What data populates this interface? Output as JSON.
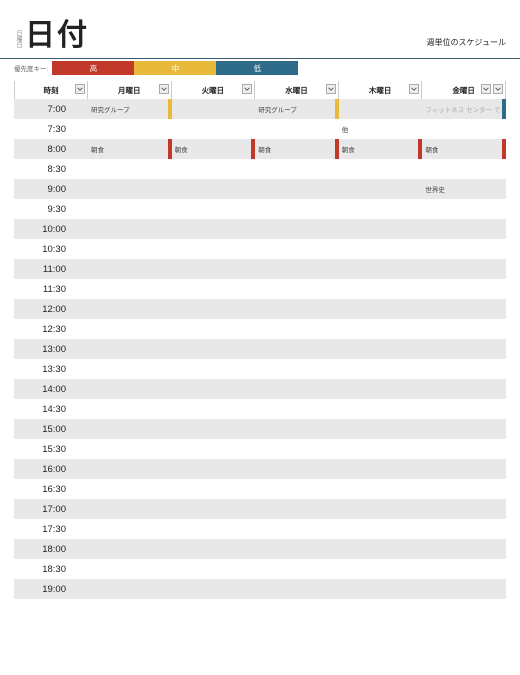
{
  "header": {
    "vertical_label": "日曜日",
    "title": "日付",
    "subtitle": "週単位のスケジュール"
  },
  "priority": {
    "label": "優先度キー:",
    "levels": [
      {
        "label": "高",
        "color": "#c0392b"
      },
      {
        "label": "中",
        "color": "#e9b93c"
      },
      {
        "label": "低",
        "color": "#2d6b88"
      }
    ]
  },
  "columns": {
    "time": "時刻",
    "days": [
      "月曜日",
      "火曜日",
      "水曜日",
      "木曜日",
      "金曜日"
    ]
  },
  "colors": {
    "high": "#c0392b",
    "mid": "#e9b93c",
    "low": "#2d6b88",
    "header_border": "#3a5b6c",
    "alt_row": "#e8e8e8"
  },
  "time_slots": [
    "7:00",
    "7:30",
    "8:00",
    "8:30",
    "9:00",
    "9:30",
    "10:00",
    "10:30",
    "11:00",
    "11:30",
    "12:00",
    "12:30",
    "13:00",
    "13:30",
    "14:00",
    "14:30",
    "15:00",
    "15:30",
    "16:00",
    "16:30",
    "17:00",
    "17:30",
    "18:00",
    "18:30",
    "19:00"
  ],
  "events": {
    "7:00": [
      {
        "text": "研究グループ",
        "tag": "#e9b93c"
      },
      null,
      {
        "text": "研究グループ",
        "tag": "#e9b93c"
      },
      null,
      {
        "text": "フィットネス センター で John とランニング",
        "tag": "#2d6b88",
        "grey": true
      }
    ],
    "7:30": [
      null,
      null,
      null,
      {
        "text": "他"
      },
      null
    ],
    "8:00": [
      {
        "text": "朝食",
        "tag": "#c0392b"
      },
      {
        "text": "朝食",
        "tag": "#c0392b"
      },
      {
        "text": "朝食",
        "tag": "#c0392b"
      },
      {
        "text": "朝食",
        "tag": "#c0392b"
      },
      {
        "text": "朝食",
        "tag": "#c0392b"
      }
    ],
    "9:00": [
      null,
      null,
      null,
      null,
      {
        "text": "世界史"
      }
    ]
  }
}
